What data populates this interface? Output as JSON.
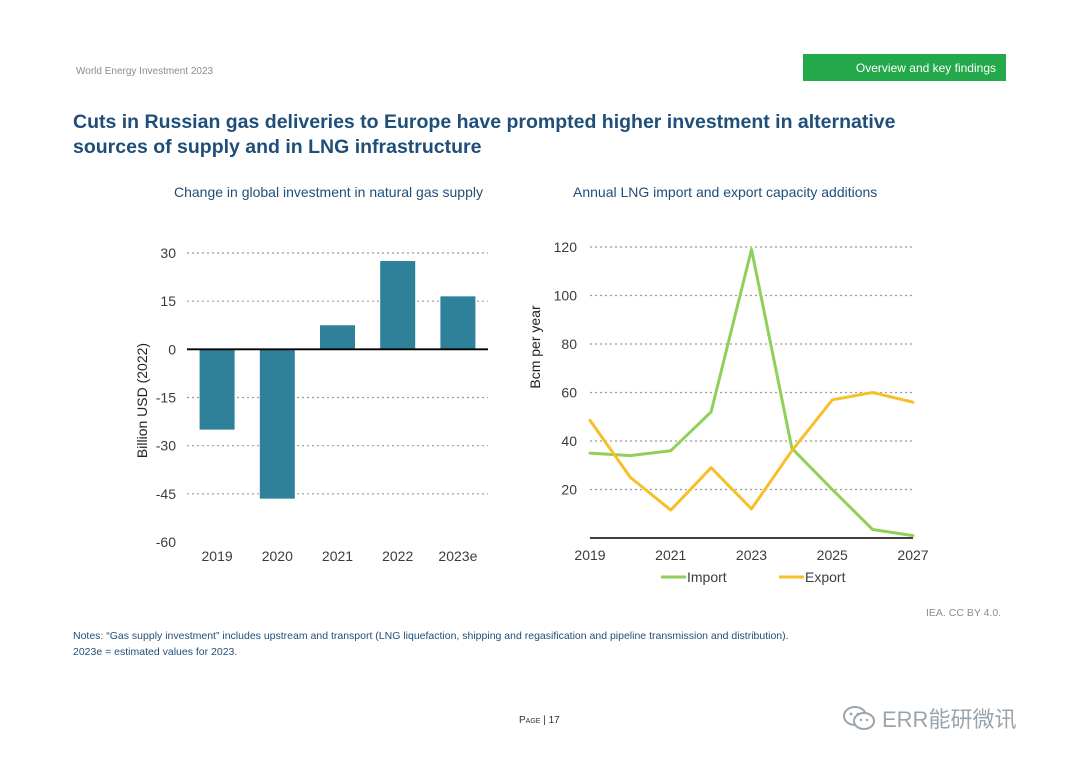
{
  "header": {
    "report_name": "World Energy Investment 2023",
    "section": "Overview and key findings"
  },
  "title": "Cuts in Russian gas deliveries to Europe have prompted higher investment in alternative sources of supply and in LNG infrastructure",
  "colors": {
    "bar": "#2e8198",
    "import": "#8fd05a",
    "export": "#f5c02a",
    "title": "#1f4e79",
    "badge": "#23a84a"
  },
  "chart_data": [
    {
      "type": "bar",
      "title": "Change in global investment in natural gas supply",
      "ylabel": "Billion USD (2022)",
      "xlabel": "",
      "categories": [
        "2019",
        "2020",
        "2021",
        "2022",
        "2023e"
      ],
      "values": [
        -25,
        -46.5,
        7.5,
        27.5,
        16.5
      ],
      "ylim": [
        -60,
        30
      ],
      "yticks": [
        30,
        15,
        0,
        -15,
        -30,
        -45,
        -60
      ],
      "grid": true
    },
    {
      "type": "line",
      "title": "Annual LNG import and export capacity additions",
      "ylabel": "Bcm per year",
      "xlabel": "",
      "x": [
        2019,
        2020,
        2021,
        2022,
        2023,
        2024,
        2025,
        2026,
        2027
      ],
      "xticks": [
        "2019",
        "2021",
        "2023",
        "2025",
        "2027"
      ],
      "yticks": [
        20,
        40,
        60,
        80,
        100,
        120
      ],
      "ylim": [
        0,
        120
      ],
      "grid": true,
      "legend_position": "bottom",
      "series": [
        {
          "name": "Import",
          "values": [
            35,
            34,
            36,
            52,
            119,
            37,
            20,
            3.5,
            1
          ]
        },
        {
          "name": "Export",
          "values": [
            48.5,
            25,
            11.5,
            29,
            12,
            36,
            57,
            60,
            56
          ]
        }
      ]
    }
  ],
  "source": "IEA. CC BY 4.0.",
  "notes": {
    "line1": "Notes: “Gas supply investment” includes upstream and transport (LNG liquefaction, shipping and regasification and pipeline transmission and distribution).",
    "line2": "2023e = estimated values for 2023."
  },
  "footer": {
    "page": "Page | 17",
    "watermark": "ERR能研微讯"
  }
}
